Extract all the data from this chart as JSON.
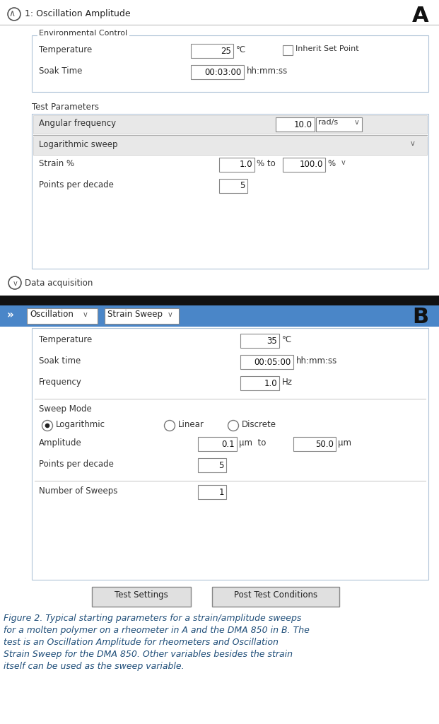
{
  "fig_width": 6.21,
  "fig_height": 10.24,
  "dpi": 100,
  "bg_color": "#ffffff",
  "panel_A": {
    "label": "A",
    "title": "1: Oscillation Amplitude",
    "env_control_label": "Environmental Control",
    "temperature_label": "Temperature",
    "temperature_value": "25",
    "temperature_unit": "°C",
    "inherit_label": "Inherit Set Point",
    "soak_time_label": "Soak Time",
    "soak_time_value": "00:03:00",
    "soak_time_unit": "hh:mm:ss",
    "test_params_label": "Test Parameters",
    "angular_freq_label": "Angular frequency",
    "angular_freq_value": "10.0",
    "angular_freq_unit": "rad/s",
    "sweep_type": "Logarithmic sweep",
    "strain_label": "Strain %",
    "strain_from": "1.0",
    "strain_pct1": "% to",
    "strain_to": "100.0",
    "strain_pct2": "%",
    "points_label": "Points per decade",
    "points_value": "5",
    "data_acq_label": "Data acquisition"
  },
  "panel_B": {
    "label": "B",
    "header_label1": "Oscillation",
    "header_label2": "Strain Sweep",
    "temperature_label": "Temperature",
    "temperature_value": "35",
    "temperature_unit": "°C",
    "soak_label": "Soak time",
    "soak_value": "00:05:00",
    "soak_unit": "hh:mm:ss",
    "freq_label": "Frequency",
    "freq_value": "1.0",
    "freq_unit": "Hz",
    "sweep_mode_label": "Sweep Mode",
    "radio1": "Logarithmic",
    "radio2": "Linear",
    "radio3": "Discrete",
    "amplitude_label": "Amplitude",
    "amplitude_from": "0.1",
    "amplitude_unit1": "μm  to",
    "amplitude_to": "50.0",
    "amplitude_unit2": "μm",
    "points_label": "Points per decade",
    "points_value": "5",
    "sweeps_label": "Number of Sweeps",
    "sweeps_value": "1",
    "btn1": "Test Settings",
    "btn2": "Post Test Conditions"
  },
  "caption": "Figure 2. Typical starting parameters for a strain/amplitude sweeps for a molten polymer on a rheometer in A and the DMA 850 in B. The test is an Oscillation Amplitude for rheometers and Oscillation Strain Sweep for the DMA 850. Other variables besides the strain itself can be used as the sweep variable.",
  "caption_color": "#1F4E79",
  "header_blue": "#4A86C8",
  "gray_row": "#e8e8e8",
  "box_border": "#cccccc",
  "input_border": "#888888",
  "text_color": "#333333",
  "dark_text": "#111111"
}
